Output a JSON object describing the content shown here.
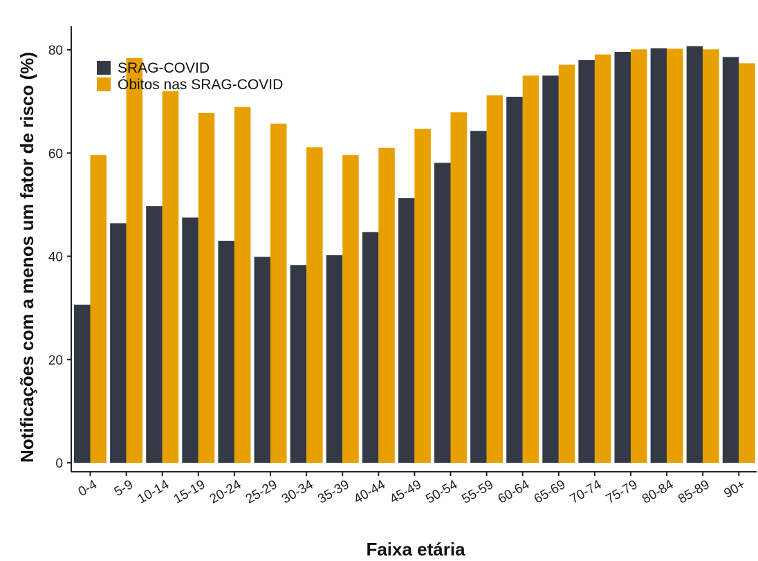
{
  "chart_data": {
    "type": "bar",
    "title": "",
    "xlabel": "Faixa etária",
    "ylabel": "Notificações com a menos um fator de risco (%)",
    "ylim": [
      0,
      85
    ],
    "yticks": [
      0,
      20,
      40,
      60,
      80
    ],
    "grid": false,
    "legend_position": "top-left",
    "categories": [
      "0-4",
      "5-9",
      "10-14",
      "15-19",
      "20-24",
      "25-29",
      "30-34",
      "35-39",
      "40-44",
      "45-49",
      "50-54",
      "55-59",
      "60-64",
      "65-69",
      "70-74",
      "75-79",
      "80-84",
      "85-89",
      "90+"
    ],
    "series": [
      {
        "name": "SRAG-COVID",
        "color": "#343a45",
        "values": [
          30.6,
          46.4,
          49.7,
          47.5,
          43.0,
          39.9,
          38.3,
          40.2,
          44.7,
          51.3,
          58.1,
          64.3,
          70.9,
          75.0,
          78.0,
          79.6,
          80.3,
          80.7,
          78.6
        ]
      },
      {
        "name": "Óbitos nas SRAG-COVID",
        "color": "#e8a000",
        "values": [
          59.6,
          78.4,
          72.0,
          67.8,
          68.9,
          65.7,
          61.1,
          59.6,
          61.0,
          64.7,
          67.9,
          71.2,
          75.0,
          77.1,
          79.1,
          80.1,
          80.2,
          80.1,
          77.4
        ]
      }
    ]
  }
}
